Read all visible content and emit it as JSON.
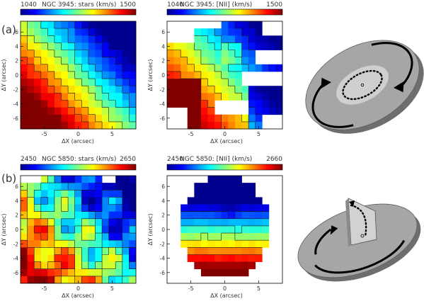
{
  "panels": [
    {
      "row_label": "(a)",
      "title": "NGC 3945: stars (km/s)",
      "cb_min": "1040",
      "cb_max": "1500",
      "field": "stars_a",
      "xticks": [
        "-5",
        "0",
        "5"
      ],
      "yticks": [
        "6",
        "4",
        "2",
        "0",
        "-2",
        "-4",
        "-6"
      ],
      "xlabel": "ΔX (arcsec)",
      "ylabel": "ΔY (arcsec)"
    },
    {
      "row_label": "",
      "title": "NGC 3945: [NII] (km/s)",
      "cb_min": "1040",
      "cb_max": "1500",
      "field": "gas_a",
      "xticks": [
        "-5",
        "0",
        "5"
      ],
      "yticks": [
        "6",
        "4",
        "2",
        "0",
        "-2",
        "-4",
        "-6"
      ],
      "xlabel": "ΔX (arcsec)",
      "ylabel": "ΔY (arcsec)"
    },
    {
      "row_label": "(b)",
      "title": "NGC 5850: stars (km/s)",
      "cb_min": "2450",
      "cb_max": "2650",
      "field": "stars_b",
      "xticks": [
        "-5",
        "0",
        "5"
      ],
      "yticks": [
        "6",
        "4",
        "2",
        "0",
        "-2",
        "-4",
        "-6"
      ],
      "xlabel": "ΔX (arcsec)",
      "ylabel": "ΔY (arcsec)"
    },
    {
      "row_label": "",
      "title": "NGC 5850: [NII] (km/s)",
      "cb_min": "2450",
      "cb_max": "2660",
      "field": "gas_b",
      "xticks": [
        "-5",
        "0",
        "5"
      ],
      "yticks": [
        "6",
        "4",
        "2",
        "0",
        "-2",
        "-4",
        "-6"
      ],
      "xlabel": "ΔX (arcsec)",
      "ylabel": "ΔY (arcsec)"
    }
  ],
  "colors": {
    "colormap": [
      "#00008f",
      "#0000ff",
      "#0080ff",
      "#00ffff",
      "#80ff80",
      "#ffff00",
      "#ff8000",
      "#ff0000",
      "#800000"
    ],
    "disk_outer": "#a6a6a6",
    "disk_inner": "#cfcfcf",
    "disk_edge": "#6e6e6e",
    "arrow": "#000000"
  }
}
